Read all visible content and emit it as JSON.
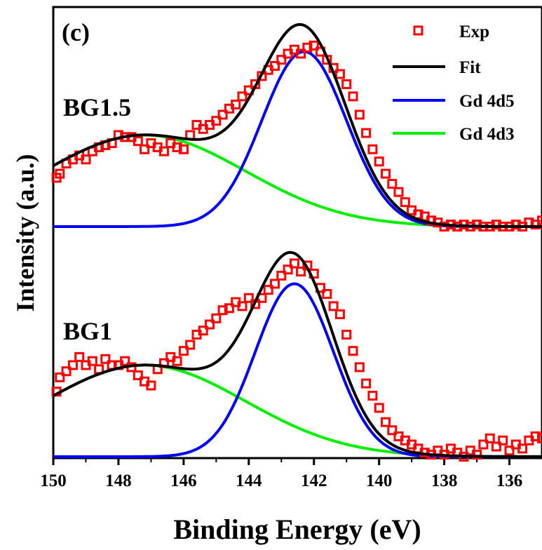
{
  "chart_data": {
    "type": "scatter",
    "xlabel": "Binding Energy (eV)",
    "ylabel": "Intensity (a.u.)",
    "panel_label": "(c)",
    "xlim": [
      150,
      135
    ],
    "x_reversed": true,
    "xticks": [
      150,
      148,
      146,
      144,
      142,
      140,
      138,
      136
    ],
    "y_tick_labels": false,
    "legend": {
      "position": "top-right",
      "entries": [
        {
          "label": "Exp",
          "marker": "open-square",
          "color": "#ff0000"
        },
        {
          "label": "Fit",
          "marker": "line",
          "color": "#000000"
        },
        {
          "label": "Gd 4d5",
          "marker": "line",
          "color": "#0000ff"
        },
        {
          "label": "Gd 4d3",
          "marker": "line",
          "color": "#00ee00"
        }
      ]
    },
    "colors": {
      "exp": "#ff0000",
      "fit": "#000000",
      "gd4d5": "#0000ff",
      "gd4d3": "#00ee00"
    },
    "spectra": [
      {
        "label": "BG1.5",
        "baseline": 0.0,
        "gd4d5": {
          "center": 142.3,
          "amplitude": 0.86,
          "sigma": 1.3
        },
        "gd4d3": {
          "center": 147.2,
          "amplitude": 0.45,
          "sigma": 3.1
        },
        "exp": [
          [
            149.9,
            0.24
          ],
          [
            149.8,
            0.26
          ],
          [
            149.6,
            0.31
          ],
          [
            149.4,
            0.33
          ],
          [
            149.2,
            0.35
          ],
          [
            149.0,
            0.33
          ],
          [
            148.8,
            0.37
          ],
          [
            148.6,
            0.39
          ],
          [
            148.4,
            0.4
          ],
          [
            148.2,
            0.41
          ],
          [
            148.0,
            0.45
          ],
          [
            147.8,
            0.44
          ],
          [
            147.6,
            0.44
          ],
          [
            147.4,
            0.42
          ],
          [
            147.2,
            0.38
          ],
          [
            147.0,
            0.41
          ],
          [
            146.8,
            0.39
          ],
          [
            146.6,
            0.37
          ],
          [
            146.4,
            0.41
          ],
          [
            146.2,
            0.39
          ],
          [
            146.0,
            0.38
          ],
          [
            145.8,
            0.45
          ],
          [
            145.6,
            0.5
          ],
          [
            145.4,
            0.48
          ],
          [
            145.2,
            0.5
          ],
          [
            145.0,
            0.52
          ],
          [
            144.8,
            0.55
          ],
          [
            144.6,
            0.58
          ],
          [
            144.4,
            0.6
          ],
          [
            144.2,
            0.64
          ],
          [
            144.0,
            0.67
          ],
          [
            143.8,
            0.7
          ],
          [
            143.6,
            0.74
          ],
          [
            143.4,
            0.77
          ],
          [
            143.2,
            0.79
          ],
          [
            143.0,
            0.82
          ],
          [
            142.8,
            0.85
          ],
          [
            142.6,
            0.87
          ],
          [
            142.4,
            0.85
          ],
          [
            142.2,
            0.88
          ],
          [
            142.0,
            0.89
          ],
          [
            141.8,
            0.86
          ],
          [
            141.6,
            0.82
          ],
          [
            141.4,
            0.78
          ],
          [
            141.2,
            0.75
          ],
          [
            141.0,
            0.7
          ],
          [
            140.8,
            0.64
          ],
          [
            140.6,
            0.55
          ],
          [
            140.4,
            0.46
          ],
          [
            140.2,
            0.38
          ],
          [
            140.0,
            0.32
          ],
          [
            139.8,
            0.26
          ],
          [
            139.6,
            0.21
          ],
          [
            139.4,
            0.17
          ],
          [
            139.2,
            0.12
          ],
          [
            139.0,
            0.08
          ],
          [
            138.8,
            0.06
          ],
          [
            138.6,
            0.05
          ],
          [
            138.4,
            0.03
          ],
          [
            138.2,
            0.02
          ],
          [
            138.0,
            0.0
          ],
          [
            137.8,
            0.01
          ],
          [
            137.6,
            0.0
          ],
          [
            137.4,
            0.01
          ],
          [
            137.2,
            0.0
          ],
          [
            137.0,
            0.01
          ],
          [
            136.8,
            0.0
          ],
          [
            136.6,
            0.0
          ],
          [
            136.4,
            0.01
          ],
          [
            136.2,
            0.0
          ],
          [
            136.0,
            0.0
          ],
          [
            135.8,
            0.01
          ],
          [
            135.6,
            0.0
          ],
          [
            135.4,
            0.02
          ],
          [
            135.2,
            0.01
          ],
          [
            135.0,
            0.03
          ]
        ]
      },
      {
        "label": "BG1",
        "baseline": 0.0,
        "gd4d5": {
          "center": 142.6,
          "amplitude": 0.85,
          "sigma": 1.2
        },
        "gd4d3": {
          "center": 147.2,
          "amplitude": 0.45,
          "sigma": 3.1
        },
        "exp": [
          [
            149.9,
            0.32
          ],
          [
            149.8,
            0.39
          ],
          [
            149.6,
            0.42
          ],
          [
            149.4,
            0.45
          ],
          [
            149.2,
            0.49
          ],
          [
            149.0,
            0.45
          ],
          [
            148.8,
            0.47
          ],
          [
            148.6,
            0.43
          ],
          [
            148.4,
            0.48
          ],
          [
            148.2,
            0.45
          ],
          [
            148.0,
            0.45
          ],
          [
            147.8,
            0.47
          ],
          [
            147.6,
            0.44
          ],
          [
            147.4,
            0.4
          ],
          [
            147.2,
            0.37
          ],
          [
            147.0,
            0.35
          ],
          [
            146.8,
            0.43
          ],
          [
            146.6,
            0.46
          ],
          [
            146.4,
            0.49
          ],
          [
            146.2,
            0.47
          ],
          [
            146.0,
            0.52
          ],
          [
            145.8,
            0.55
          ],
          [
            145.6,
            0.6
          ],
          [
            145.4,
            0.62
          ],
          [
            145.2,
            0.65
          ],
          [
            145.0,
            0.68
          ],
          [
            144.8,
            0.72
          ],
          [
            144.6,
            0.73
          ],
          [
            144.4,
            0.76
          ],
          [
            144.2,
            0.74
          ],
          [
            144.0,
            0.78
          ],
          [
            143.8,
            0.75
          ],
          [
            143.6,
            0.78
          ],
          [
            143.4,
            0.82
          ],
          [
            143.2,
            0.85
          ],
          [
            143.0,
            0.89
          ],
          [
            142.8,
            0.92
          ],
          [
            142.6,
            0.95
          ],
          [
            142.4,
            0.91
          ],
          [
            142.2,
            0.94
          ],
          [
            142.0,
            0.9
          ],
          [
            141.8,
            0.83
          ],
          [
            141.6,
            0.8
          ],
          [
            141.4,
            0.74
          ],
          [
            141.2,
            0.7
          ],
          [
            141.0,
            0.6
          ],
          [
            140.8,
            0.52
          ],
          [
            140.6,
            0.44
          ],
          [
            140.4,
            0.36
          ],
          [
            140.2,
            0.3
          ],
          [
            140.0,
            0.24
          ],
          [
            139.8,
            0.17
          ],
          [
            139.6,
            0.13
          ],
          [
            139.4,
            0.1
          ],
          [
            139.2,
            0.08
          ],
          [
            139.0,
            0.06
          ],
          [
            138.8,
            0.04
          ],
          [
            138.6,
            0.02
          ],
          [
            138.4,
            0.01
          ],
          [
            138.2,
            0.03
          ],
          [
            138.0,
            0.01
          ],
          [
            137.8,
            0.04
          ],
          [
            137.6,
            0.02
          ],
          [
            137.4,
            0.0
          ],
          [
            137.2,
            0.03
          ],
          [
            137.0,
            0.01
          ],
          [
            136.8,
            0.06
          ],
          [
            136.6,
            0.09
          ],
          [
            136.4,
            0.05
          ],
          [
            136.2,
            0.08
          ],
          [
            136.0,
            0.03
          ],
          [
            135.8,
            0.06
          ],
          [
            135.6,
            0.04
          ],
          [
            135.4,
            0.08
          ],
          [
            135.2,
            0.1
          ],
          [
            135.0,
            0.09
          ]
        ]
      }
    ]
  }
}
